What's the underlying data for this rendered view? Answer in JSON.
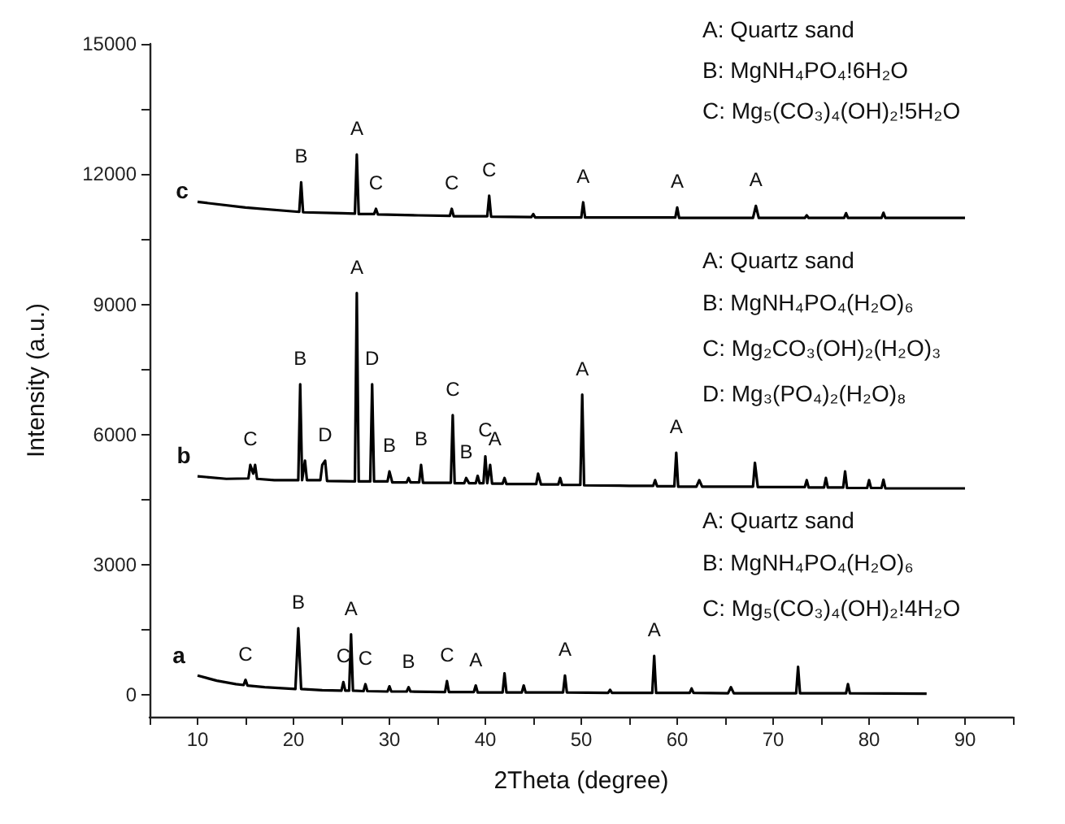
{
  "chart_data": {
    "type": "line",
    "xlabel": "2Theta (degree)",
    "ylabel": "Intensity (a.u.)",
    "xlim": [
      5,
      95
    ],
    "ylim": [
      -500,
      15000
    ],
    "xticks": [
      {
        "value": 5,
        "label": null
      },
      10,
      {
        "value": 15,
        "label": null
      },
      20,
      {
        "value": 25,
        "label": null
      },
      30,
      {
        "value": 35,
        "label": null
      },
      40,
      {
        "value": 45,
        "label": null
      },
      50,
      {
        "value": 55,
        "label": null
      },
      60,
      {
        "value": 65,
        "label": null
      },
      70,
      {
        "value": 75,
        "label": null
      },
      80,
      {
        "value": 85,
        "label": null
      },
      90,
      {
        "value": 95,
        "label": null
      }
    ],
    "yticks": [
      0,
      {
        "value": 1500,
        "label": null
      },
      3000,
      {
        "value": 4500,
        "label": null
      },
      6000,
      {
        "value": 7500,
        "label": null
      },
      9000,
      {
        "value": 10500,
        "label": null
      },
      12000,
      {
        "value": 13500,
        "label": null
      },
      15000
    ],
    "series": [
      {
        "color": "#000000",
        "x": [
          10,
          12,
          14,
          14.8,
          15,
          15.2,
          17,
          20.2,
          20.5,
          20.8,
          23,
          25,
          25.2,
          25.4,
          25.8,
          26,
          26.2,
          27.3,
          27.5,
          27.7,
          29.8,
          30,
          30.2,
          31.8,
          32,
          32.2,
          35.8,
          36,
          36.2,
          38.8,
          39,
          39.2,
          41.8,
          42,
          42.2,
          43.8,
          44,
          44.2,
          48.1,
          48.3,
          48.5,
          52.8,
          53,
          53.2,
          57.4,
          57.6,
          57.8,
          61.3,
          61.5,
          61.7,
          65.3,
          65.6,
          65.9,
          72.4,
          72.6,
          72.8,
          77.6,
          77.8,
          78,
          86
        ],
        "values": [
          450,
          330,
          250,
          230,
          350,
          220,
          180,
          140,
          1540,
          140,
          110,
          100,
          300,
          100,
          100,
          1400,
          100,
          90,
          250,
          90,
          80,
          200,
          80,
          80,
          180,
          80,
          70,
          320,
          70,
          70,
          220,
          60,
          60,
          500,
          60,
          60,
          220,
          60,
          60,
          450,
          60,
          50,
          120,
          50,
          50,
          900,
          50,
          50,
          150,
          50,
          40,
          180,
          40,
          40,
          650,
          40,
          40,
          250,
          40,
          30
        ]
      },
      {
        "color": "#000000",
        "x": [
          10,
          13,
          15.3,
          15.5,
          15.8,
          16,
          16.2,
          18,
          20.5,
          20.7,
          20.9,
          21.2,
          21.4,
          22.8,
          23,
          23.3,
          23.5,
          26.4,
          26.6,
          26.8,
          28,
          28.2,
          28.4,
          29.8,
          30,
          30.3,
          31.8,
          32,
          32.2,
          33.1,
          33.3,
          33.5,
          36.4,
          36.6,
          36.8,
          37.8,
          38,
          38.3,
          39,
          39.2,
          39.4,
          39.8,
          40,
          40.2,
          40.5,
          40.7,
          41.8,
          42,
          42.2,
          45.3,
          45.5,
          45.8,
          47.6,
          47.8,
          48,
          49.9,
          50.1,
          50.3,
          55,
          57.5,
          57.7,
          57.9,
          59.7,
          59.9,
          60.1,
          62,
          62.3,
          62.6,
          67.9,
          68.1,
          68.4,
          73.3,
          73.5,
          73.7,
          75.3,
          75.5,
          75.7,
          77.3,
          77.5,
          77.7,
          79.8,
          80,
          80.2,
          81.3,
          81.5,
          81.7,
          84,
          90
        ],
        "values": [
          5040,
          4980,
          4990,
          5300,
          5100,
          5300,
          4980,
          4950,
          4950,
          7160,
          4950,
          5400,
          4950,
          4950,
          5300,
          5400,
          4930,
          4920,
          9260,
          4920,
          4920,
          7160,
          4920,
          4920,
          5150,
          4900,
          4900,
          5000,
          4900,
          4900,
          5300,
          4890,
          4890,
          6450,
          4880,
          4880,
          5000,
          4880,
          4880,
          5050,
          4880,
          4880,
          5500,
          4880,
          5300,
          4870,
          4870,
          5000,
          4860,
          4860,
          5100,
          4850,
          4850,
          5000,
          4840,
          4840,
          6920,
          4830,
          4820,
          4820,
          4950,
          4810,
          4810,
          5580,
          4800,
          4800,
          4950,
          4800,
          4800,
          5350,
          4790,
          4790,
          4950,
          4780,
          4780,
          5000,
          4780,
          4780,
          5150,
          4770,
          4770,
          4950,
          4770,
          4770,
          4960,
          4760,
          4760,
          4760
        ]
      },
      {
        "color": "#000000",
        "x": [
          10,
          15,
          20.6,
          20.8,
          21,
          25,
          26.4,
          26.6,
          26.8,
          28.4,
          28.6,
          28.8,
          33,
          36.3,
          36.5,
          36.7,
          40.2,
          40.4,
          40.6,
          44.8,
          45,
          45.2,
          50,
          50.2,
          50.4,
          59.8,
          60,
          60.2,
          67.9,
          68.2,
          68.5,
          73.3,
          73.5,
          73.7,
          77.4,
          77.6,
          77.8,
          81.3,
          81.5,
          81.7,
          90
        ],
        "values": [
          11360,
          11230,
          11130,
          11810,
          11120,
          11100,
          11090,
          12450,
          11080,
          11080,
          11200,
          11070,
          11050,
          11040,
          11200,
          11030,
          11030,
          11500,
          11020,
          11010,
          11080,
          11000,
          11000,
          11350,
          11000,
          11000,
          11230,
          10990,
          10990,
          11270,
          10990,
          10990,
          11050,
          10990,
          10990,
          11100,
          10990,
          10990,
          11110,
          10990,
          10990
        ]
      }
    ],
    "annotations": [
      "A: Quartz sand",
      "B: MgNH₄PO₄!6H₂O",
      "C: Mg₅(CO₃)₄(OH)₂!5H₂O",
      "A: Quartz sand",
      "B: MgNH₄PO₄(H₂O)₆",
      "C: Mg₂CO₃(OH)₂(H₂O)₃",
      "D: Mg₃(PO₄)₂(H₂O)₈",
      "A: Quartz sand",
      "B: MgNH₄PO₄(H₂O)₆",
      "C: Mg₅(CO₃)₄(OH)₂!4H₂O",
      "a",
      "b",
      "c",
      {
        "text": "C",
        "x": 15,
        "y": 350
      },
      {
        "text": "B",
        "x": 20.5,
        "y": 1540
      },
      {
        "text": "C",
        "x": 25.2,
        "y": 300
      },
      {
        "text": "A",
        "x": 26,
        "y": 1400
      },
      {
        "text": "C",
        "x": 27.5,
        "y": 250
      },
      {
        "text": "B",
        "x": 32,
        "y": 180
      },
      {
        "text": "C",
        "x": 36,
        "y": 320
      },
      {
        "text": "A",
        "x": 39,
        "y": 220
      },
      {
        "text": "A",
        "x": 48.3,
        "y": 450
      },
      {
        "text": "A",
        "x": 57.6,
        "y": 900
      },
      {
        "text": "C",
        "x": 15.5,
        "y": 5300
      },
      {
        "text": "B",
        "x": 20.7,
        "y": 7160
      },
      {
        "text": "D",
        "x": 23.3,
        "y": 5400
      },
      {
        "text": "A",
        "x": 26.6,
        "y": 9260
      },
      {
        "text": "D",
        "x": 28.2,
        "y": 7160
      },
      {
        "text": "B",
        "x": 30,
        "y": 5150
      },
      {
        "text": "B",
        "x": 33.3,
        "y": 5300
      },
      {
        "text": "C",
        "x": 36.6,
        "y": 6450
      },
      {
        "text": "B",
        "x": 38,
        "y": 5000
      },
      {
        "text": "C",
        "x": 40,
        "y": 5500
      },
      {
        "text": "A",
        "x": 41,
        "y": 5300
      },
      {
        "text": "A",
        "x": 50.1,
        "y": 6920
      },
      {
        "text": "A",
        "x": 59.9,
        "y": 5580
      },
      {
        "text": "B",
        "x": 20.8,
        "y": 11810
      },
      {
        "text": "A",
        "x": 26.6,
        "y": 12450
      },
      {
        "text": "C",
        "x": 28.6,
        "y": 11200
      },
      {
        "text": "C",
        "x": 36.5,
        "y": 11200
      },
      {
        "text": "C",
        "x": 40.4,
        "y": 11500
      },
      {
        "text": "A",
        "x": 50.2,
        "y": 11350
      },
      {
        "text": "A",
        "x": 60,
        "y": 11230
      },
      {
        "text": "A",
        "x": 68.2,
        "y": 11270
      }
    ]
  }
}
